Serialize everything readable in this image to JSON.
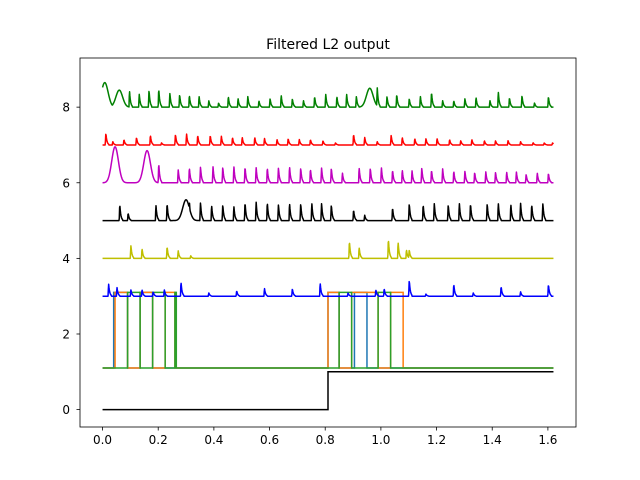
{
  "chart_data": {
    "type": "line",
    "title": "Filtered L2 output",
    "xlabel": "",
    "ylabel": "",
    "xlim": [
      -0.081,
      1.701
    ],
    "ylim": [
      -0.46,
      9.3
    ],
    "xticks": [
      0.0,
      0.2,
      0.4,
      0.6,
      0.8,
      1.0,
      1.2,
      1.4,
      1.6
    ],
    "xtick_labels": [
      "0.0",
      "0.2",
      "0.4",
      "0.6",
      "0.8",
      "1.0",
      "1.2",
      "1.4",
      "1.6"
    ],
    "yticks": [
      0,
      2,
      4,
      6,
      8
    ],
    "ytick_labels": [
      "0",
      "2",
      "4",
      "6",
      "8"
    ],
    "grid": false,
    "legend": "none",
    "x_end": 1.62,
    "series": [
      {
        "color": "#008000",
        "baseline": 8.0,
        "spikes": [
          [
            0.005,
            0.7
          ],
          [
            0.055,
            0.5
          ],
          [
            0.095,
            0.75
          ],
          [
            0.13,
            0.6
          ],
          [
            0.165,
            0.8
          ],
          [
            0.2,
            0.85
          ],
          [
            0.24,
            0.65
          ],
          [
            0.275,
            0.6
          ],
          [
            0.31,
            0.55
          ],
          [
            0.345,
            0.5
          ],
          [
            0.38,
            0.3
          ],
          [
            0.415,
            0.2
          ],
          [
            0.45,
            0.5
          ],
          [
            0.485,
            0.4
          ],
          [
            0.52,
            0.5
          ],
          [
            0.56,
            0.3
          ],
          [
            0.6,
            0.4
          ],
          [
            0.64,
            0.55
          ],
          [
            0.68,
            0.4
          ],
          [
            0.72,
            0.3
          ],
          [
            0.76,
            0.5
          ],
          [
            0.8,
            0.6
          ],
          [
            0.84,
            0.5
          ],
          [
            0.875,
            0.6
          ],
          [
            0.91,
            0.5
          ],
          [
            0.95,
            0.7
          ],
          [
            0.985,
            0.9
          ],
          [
            1.02,
            0.5
          ],
          [
            1.055,
            0.6
          ],
          [
            1.1,
            0.4
          ],
          [
            1.14,
            0.5
          ],
          [
            1.18,
            0.7
          ],
          [
            1.22,
            0.3
          ],
          [
            1.26,
            0.3
          ],
          [
            1.3,
            0.4
          ],
          [
            1.34,
            0.45
          ],
          [
            1.39,
            0.3
          ],
          [
            1.42,
            0.7
          ],
          [
            1.46,
            0.45
          ],
          [
            1.505,
            0.55
          ],
          [
            1.55,
            0.2
          ],
          [
            1.6,
            0.5
          ]
        ],
        "bumps": [
          [
            0.008,
            0.65
          ],
          [
            0.06,
            0.45
          ],
          [
            0.96,
            0.5
          ]
        ]
      },
      {
        "color": "#ff0000",
        "baseline": 7.0,
        "spikes": [
          [
            0.01,
            0.55
          ],
          [
            0.035,
            0.15
          ],
          [
            0.075,
            0.25
          ],
          [
            0.12,
            0.35
          ],
          [
            0.17,
            0.45
          ],
          [
            0.21,
            0.1
          ],
          [
            0.26,
            0.5
          ],
          [
            0.3,
            0.5
          ],
          [
            0.34,
            0.45
          ],
          [
            0.385,
            0.45
          ],
          [
            0.425,
            0.4
          ],
          [
            0.465,
            0.35
          ],
          [
            0.5,
            0.35
          ],
          [
            0.545,
            0.35
          ],
          [
            0.58,
            0.3
          ],
          [
            0.625,
            0.25
          ],
          [
            0.665,
            0.3
          ],
          [
            0.705,
            0.25
          ],
          [
            0.745,
            0.25
          ],
          [
            0.79,
            0.2
          ],
          [
            0.835,
            0.1
          ],
          [
            0.9,
            0.5
          ],
          [
            0.94,
            0.35
          ],
          [
            0.985,
            0.15
          ],
          [
            1.035,
            0.45
          ],
          [
            1.075,
            0.35
          ],
          [
            1.12,
            0.3
          ],
          [
            1.16,
            0.3
          ],
          [
            1.2,
            0.3
          ],
          [
            1.245,
            0.25
          ],
          [
            1.285,
            0.2
          ],
          [
            1.325,
            0.25
          ],
          [
            1.37,
            0.2
          ],
          [
            1.41,
            0.2
          ],
          [
            1.455,
            0.2
          ],
          [
            1.5,
            0.15
          ],
          [
            1.545,
            0.1
          ],
          [
            1.585,
            0.1
          ],
          [
            1.615,
            0.1
          ]
        ]
      },
      {
        "color": "#bf00bf",
        "baseline": 6.0,
        "spikes": [
          [
            0.2,
            0.9
          ],
          [
            0.27,
            0.6
          ],
          [
            0.31,
            0.7
          ],
          [
            0.35,
            0.75
          ],
          [
            0.395,
            0.75
          ],
          [
            0.43,
            0.75
          ],
          [
            0.47,
            0.75
          ],
          [
            0.51,
            0.75
          ],
          [
            0.55,
            0.7
          ],
          [
            0.59,
            0.7
          ],
          [
            0.63,
            0.7
          ],
          [
            0.67,
            0.75
          ],
          [
            0.71,
            0.7
          ],
          [
            0.745,
            0.65
          ],
          [
            0.785,
            0.7
          ],
          [
            0.82,
            0.7
          ],
          [
            0.86,
            0.45
          ],
          [
            0.92,
            0.7
          ],
          [
            0.96,
            0.7
          ],
          [
            1.0,
            0.7
          ],
          [
            1.04,
            0.6
          ],
          [
            1.075,
            0.6
          ],
          [
            1.11,
            0.55
          ],
          [
            1.145,
            0.7
          ],
          [
            1.18,
            0.6
          ],
          [
            1.22,
            0.65
          ],
          [
            1.26,
            0.55
          ],
          [
            1.3,
            0.55
          ],
          [
            1.335,
            0.5
          ],
          [
            1.375,
            0.5
          ],
          [
            1.41,
            0.5
          ],
          [
            1.45,
            0.5
          ],
          [
            1.485,
            0.5
          ],
          [
            1.52,
            0.4
          ],
          [
            1.56,
            0.45
          ],
          [
            1.6,
            0.45
          ]
        ],
        "bumps": [
          [
            0.045,
            0.95
          ],
          [
            0.16,
            0.85
          ]
        ]
      },
      {
        "color": "#000000",
        "baseline": 5.0,
        "spikes": [
          [
            0.06,
            0.75
          ],
          [
            0.09,
            0.35
          ],
          [
            0.19,
            0.7
          ],
          [
            0.23,
            0.8
          ],
          [
            0.31,
            0.9
          ],
          [
            0.35,
            0.85
          ],
          [
            0.39,
            0.7
          ],
          [
            0.43,
            0.75
          ],
          [
            0.47,
            0.65
          ],
          [
            0.51,
            0.85
          ],
          [
            0.55,
            0.85
          ],
          [
            0.59,
            0.85
          ],
          [
            0.63,
            0.75
          ],
          [
            0.67,
            0.8
          ],
          [
            0.71,
            0.8
          ],
          [
            0.75,
            0.8
          ],
          [
            0.785,
            0.8
          ],
          [
            0.82,
            0.75
          ],
          [
            0.9,
            0.5
          ],
          [
            0.94,
            0.25
          ],
          [
            1.04,
            0.6
          ],
          [
            1.1,
            0.8
          ],
          [
            1.15,
            0.75
          ],
          [
            1.19,
            0.8
          ],
          [
            1.24,
            0.75
          ],
          [
            1.28,
            0.8
          ],
          [
            1.32,
            0.8
          ],
          [
            1.38,
            0.8
          ],
          [
            1.42,
            0.8
          ],
          [
            1.465,
            0.75
          ],
          [
            1.5,
            0.8
          ],
          [
            1.54,
            0.75
          ],
          [
            1.58,
            0.8
          ],
          [
            1.62,
            0.85
          ]
        ],
        "bumps": [
          [
            0.3,
            0.55
          ]
        ]
      },
      {
        "color": "#bfbf00",
        "baseline": 4.0,
        "spikes": [
          [
            0.1,
            0.6
          ],
          [
            0.14,
            0.45
          ],
          [
            0.23,
            0.55
          ],
          [
            0.27,
            0.35
          ],
          [
            0.315,
            0.12
          ],
          [
            0.885,
            0.8
          ],
          [
            0.92,
            0.5
          ],
          [
            1.025,
            0.9
          ],
          [
            1.06,
            0.75
          ],
          [
            1.09,
            0.4
          ],
          [
            1.1,
            0.4
          ]
        ]
      },
      {
        "color": "#0000ff",
        "baseline": 3.0,
        "spikes": [
          [
            0.02,
            0.55
          ],
          [
            0.05,
            0.4
          ],
          [
            0.1,
            0.3
          ],
          [
            0.14,
            0.3
          ],
          [
            0.18,
            0.2
          ],
          [
            0.22,
            0.3
          ],
          [
            0.28,
            0.65
          ],
          [
            0.38,
            0.15
          ],
          [
            0.48,
            0.25
          ],
          [
            0.58,
            0.35
          ],
          [
            0.68,
            0.35
          ],
          [
            0.78,
            0.6
          ],
          [
            0.88,
            0.15
          ],
          [
            0.98,
            0.3
          ],
          [
            1.01,
            0.35
          ],
          [
            1.1,
            0.75
          ],
          [
            1.16,
            0.1
          ],
          [
            1.26,
            0.55
          ],
          [
            1.33,
            0.15
          ],
          [
            1.43,
            0.45
          ],
          [
            1.5,
            0.2
          ],
          [
            1.6,
            0.55
          ]
        ],
        "flat_plateau": [
          0.26,
          0.91,
          1.09,
          0.1
        ]
      }
    ],
    "pulse_series": [
      {
        "color": "#1f77b4",
        "low": 1.1,
        "high": 3.1,
        "pulses": [
          [
            0.04,
            0.09
          ],
          [
            0.135,
            0.18
          ],
          [
            0.81,
            0.85
          ],
          [
            0.905,
            0.95
          ]
        ]
      },
      {
        "color": "#ff7f0e",
        "low": 1.1,
        "high": 3.1,
        "pulses": [
          [
            0.045,
            0.09
          ],
          [
            0.135,
            0.18
          ],
          [
            0.225,
            0.26
          ],
          [
            0.81,
            0.85
          ],
          [
            0.895,
            0.99
          ],
          [
            1.035,
            1.08
          ]
        ]
      },
      {
        "color": "#2ca02c",
        "low": 1.1,
        "high": 3.1,
        "pulses": [
          [
            0.09,
            0.135
          ],
          [
            0.18,
            0.225
          ],
          [
            0.26,
            0.265
          ],
          [
            0.85,
            0.895
          ],
          [
            0.99,
            1.035
          ]
        ]
      }
    ],
    "step_series": {
      "color": "#000000",
      "low": 0.0,
      "high": 1.0,
      "step_at": 0.81
    }
  }
}
